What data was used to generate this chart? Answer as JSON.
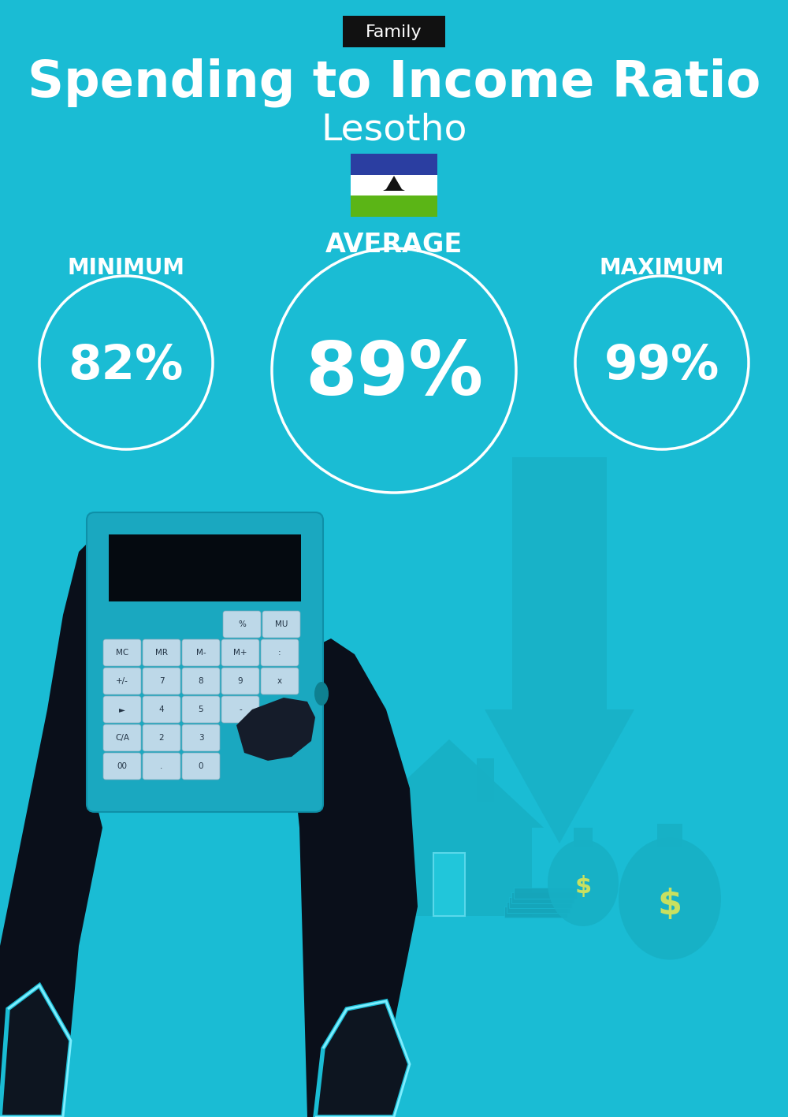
{
  "title": "Spending to Income Ratio",
  "subtitle": "Lesotho",
  "family_label": "Family",
  "bg_color": "#1ABCD4",
  "text_color": "#FFFFFF",
  "family_bg": "#111111",
  "min_label": "MINIMUM",
  "avg_label": "AVERAGE",
  "max_label": "MAXIMUM",
  "min_value": "82%",
  "avg_value": "89%",
  "max_value": "99%",
  "circle_color": "#FFFFFF",
  "title_fontsize": 46,
  "subtitle_fontsize": 34,
  "avg_label_fontsize": 24,
  "min_max_label_fontsize": 20,
  "value_fontsize_small": 44,
  "value_fontsize_large": 68,
  "family_fontsize": 16,
  "flag_blue": "#2B3EA1",
  "flag_white": "#FFFFFF",
  "flag_green": "#5BB516",
  "arrow_color": "#18AABF",
  "house_color": "#17B0C5",
  "bag_color": "#17B0C5",
  "calc_body_color": "#1AA8C0",
  "calc_screen_color": "#050A10",
  "btn_color": "#BDD8E8",
  "hand_color": "#0A0F1A",
  "cuff_color": "#1ABCD4"
}
